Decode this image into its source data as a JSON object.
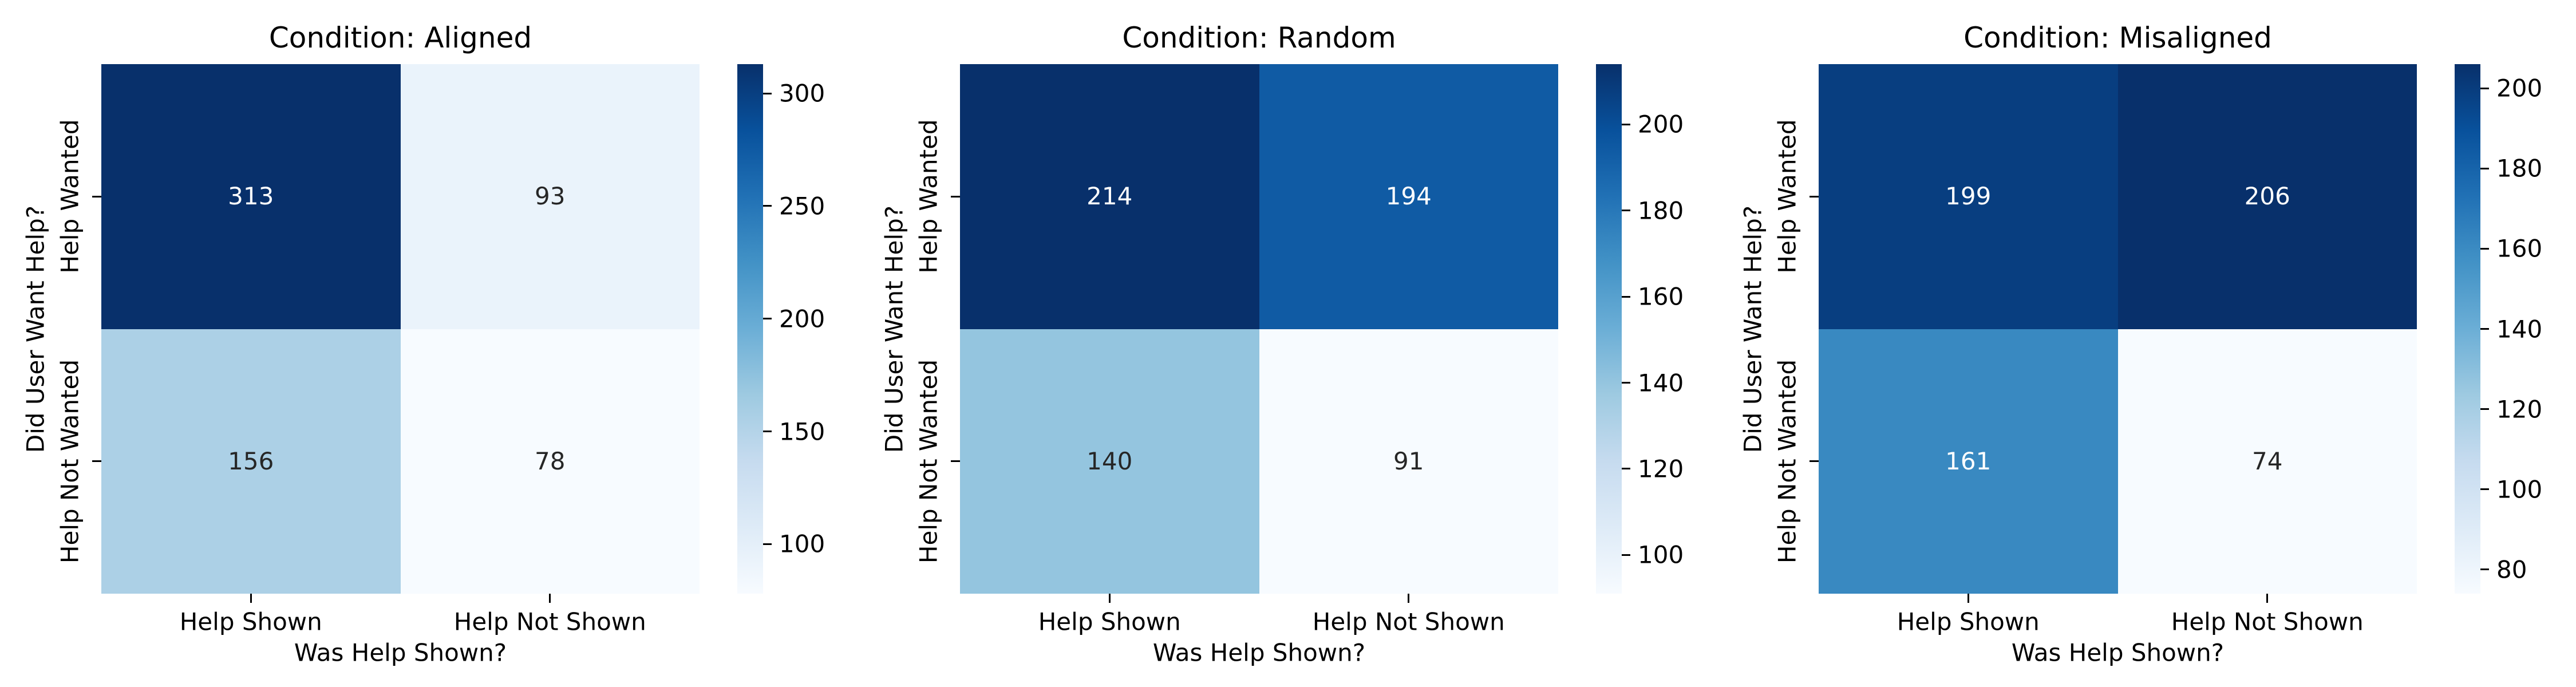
{
  "figure": {
    "background": "#ffffff"
  },
  "style": {
    "colormap": "Blues",
    "colormap_stops": [
      "#f7fbff",
      "#deebf7",
      "#c6dbef",
      "#9ecae1",
      "#6baed6",
      "#4292c6",
      "#2171b5",
      "#08519c",
      "#08306b"
    ],
    "dark_text": "#262626",
    "light_text": "#ffffff",
    "axis_text": "#000000"
  },
  "chart_data": [
    {
      "type": "heatmap",
      "title": "Condition: Aligned",
      "xlabel": "Was Help Shown?",
      "ylabel": "Did User Want Help?",
      "x_categories": [
        "Help Shown",
        "Help Not Shown"
      ],
      "y_categories": [
        "Help Wanted",
        "Help Not Wanted"
      ],
      "values": [
        [
          313,
          93
        ],
        [
          156,
          78
        ]
      ],
      "vmin": 78,
      "vmax": 313,
      "colorbar_ticks": [
        100,
        150,
        200,
        250,
        300
      ],
      "legend_position": "right",
      "grid": false
    },
    {
      "type": "heatmap",
      "title": "Condition: Random",
      "xlabel": "Was Help Shown?",
      "ylabel": "Did User Want Help?",
      "x_categories": [
        "Help Shown",
        "Help Not Shown"
      ],
      "y_categories": [
        "Help Wanted",
        "Help Not Wanted"
      ],
      "values": [
        [
          214,
          194
        ],
        [
          140,
          91
        ]
      ],
      "vmin": 91,
      "vmax": 214,
      "colorbar_ticks": [
        100,
        120,
        140,
        160,
        180,
        200
      ],
      "legend_position": "right",
      "grid": false
    },
    {
      "type": "heatmap",
      "title": "Condition: Misaligned",
      "xlabel": "Was Help Shown?",
      "ylabel": "Did User Want Help?",
      "x_categories": [
        "Help Shown",
        "Help Not Shown"
      ],
      "y_categories": [
        "Help Wanted",
        "Help Not Wanted"
      ],
      "values": [
        [
          199,
          206
        ],
        [
          161,
          74
        ]
      ],
      "vmin": 74,
      "vmax": 206,
      "colorbar_ticks": [
        80,
        100,
        120,
        140,
        160,
        180,
        200
      ],
      "legend_position": "right",
      "grid": false
    }
  ]
}
